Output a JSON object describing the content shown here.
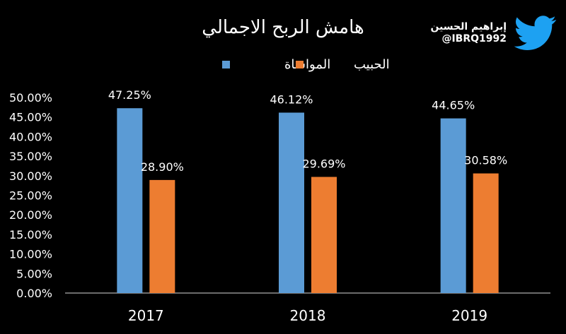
{
  "brand": {
    "name": "إبراهيم الحسين",
    "handle": "@IBRQ1992",
    "logo_icon": "twitter-bird-icon",
    "logo_color": "#1DA1F2"
  },
  "chart_data": {
    "type": "bar",
    "title": "هامش الربح الاجمالي",
    "categories": [
      "2017",
      "2018",
      "2019"
    ],
    "series": [
      {
        "name": "المواساة",
        "color": "#5B9BD5",
        "values": [
          47.25,
          46.12,
          44.65
        ],
        "labels": [
          "47.25%",
          "46.12%",
          "44.65%"
        ]
      },
      {
        "name": "الحبيب",
        "color": "#ED7D31",
        "values": [
          28.9,
          29.69,
          30.58
        ],
        "labels": [
          "28.90%",
          "29.69%",
          "30.58%"
        ]
      }
    ],
    "ylim": [
      0,
      50
    ],
    "yticks": [
      "0.00%",
      "5.00%",
      "10.00%",
      "15.00%",
      "20.00%",
      "25.00%",
      "30.00%",
      "35.00%",
      "40.00%",
      "45.00%",
      "50.00%"
    ],
    "xlabel": "",
    "ylabel": "",
    "grid": false,
    "legend": "top-center"
  }
}
